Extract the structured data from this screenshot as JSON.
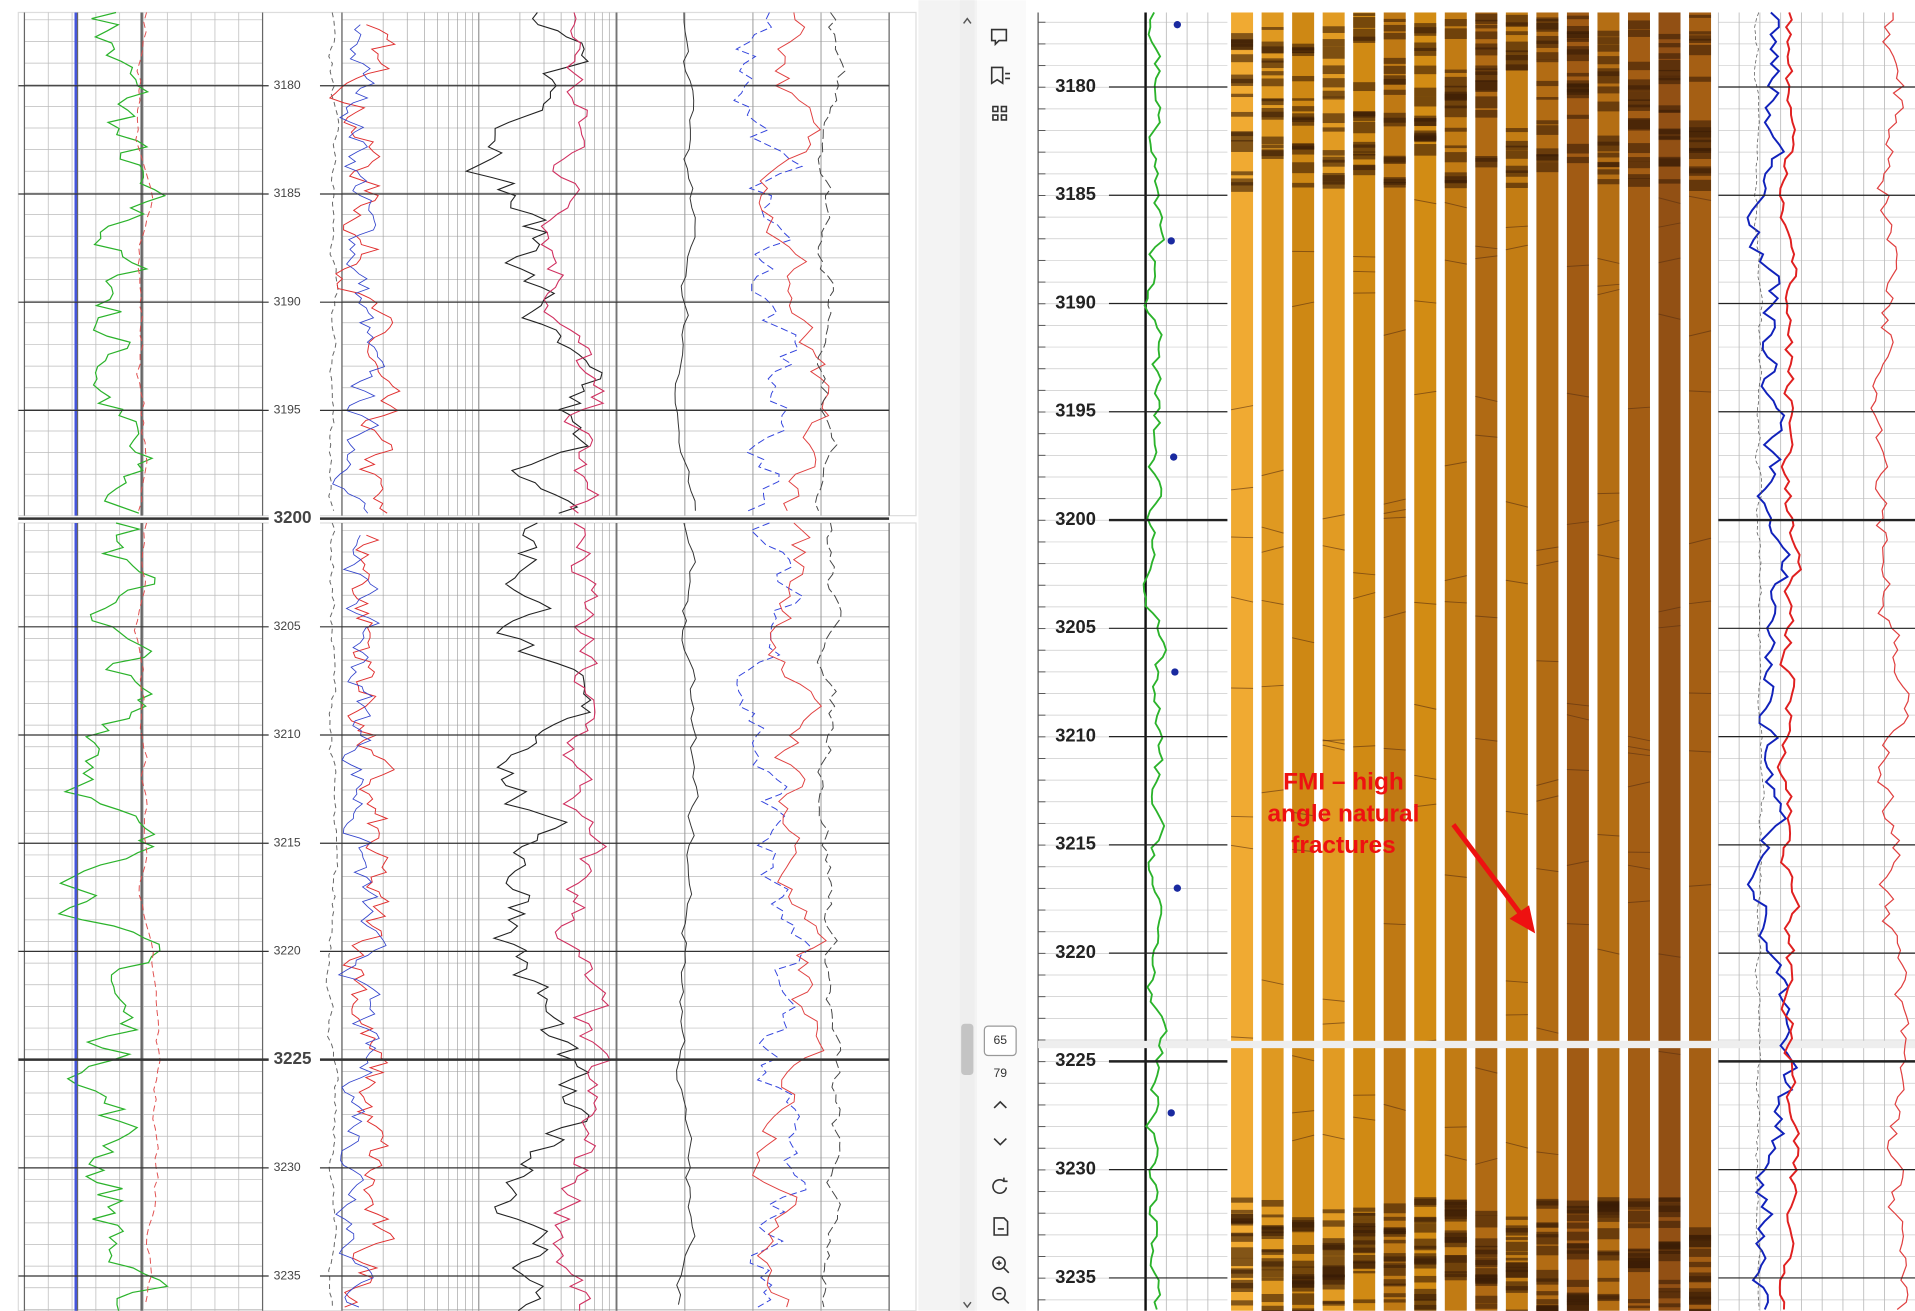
{
  "left_log": {
    "depth_labels": [
      3180,
      3185,
      3190,
      3195,
      3200,
      3205,
      3210,
      3215,
      3220,
      3225,
      3230,
      3235
    ]
  },
  "viewer_toolbar": {
    "current_page": "65",
    "total_pages": "79"
  },
  "right_log": {
    "depth_labels": [
      3180,
      3185,
      3190,
      3195,
      3200,
      3205,
      3210,
      3215,
      3220,
      3225,
      3230,
      3235
    ],
    "annotation_lines": [
      "FMI – high",
      "angle natural",
      "fractures"
    ]
  }
}
